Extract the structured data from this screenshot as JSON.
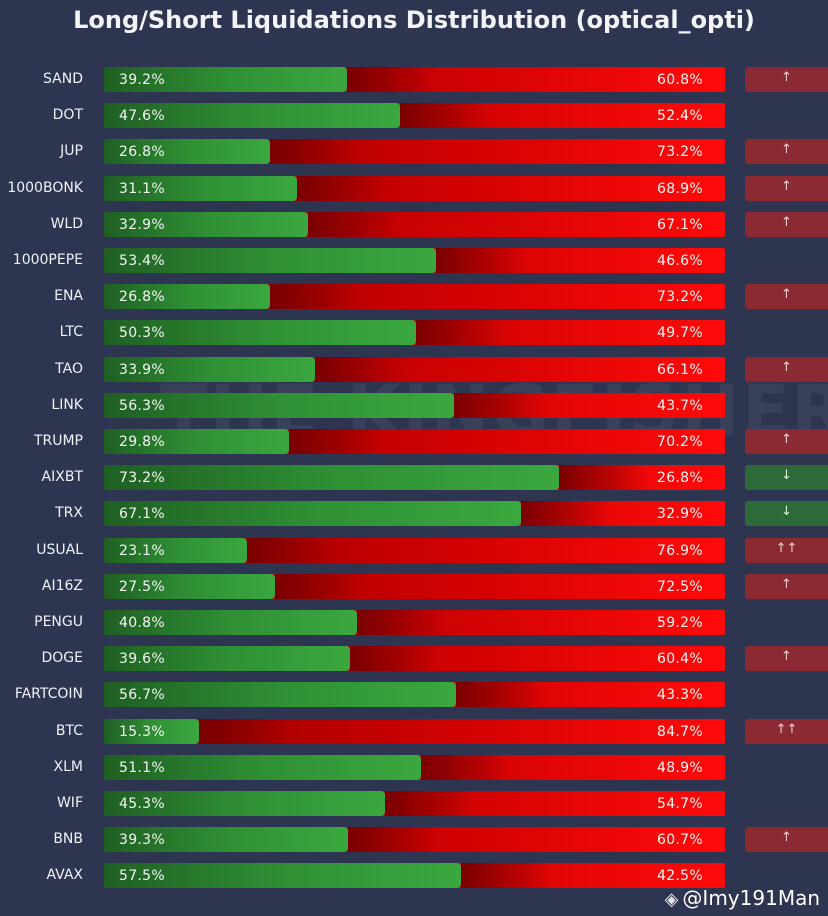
{
  "title": "Long/Short Liquidations Distribution (optical_opti)",
  "watermark": "THE KINGFISHER",
  "credit": "@Imy191Man",
  "colors": {
    "background": "#2d3550",
    "long": "#3aa83f",
    "short": "#ff0a0a",
    "signal_up": "#8c2a33",
    "signal_down": "#2d6a3a"
  },
  "chart_data": {
    "type": "bar",
    "orientation": "horizontal-stacked-percent",
    "categories": [
      "SAND",
      "DOT",
      "JUP",
      "1000BONK",
      "WLD",
      "1000PEPE",
      "ENA",
      "LTC",
      "TAO",
      "LINK",
      "TRUMP",
      "AIXBT",
      "TRX",
      "USUAL",
      "AI16Z",
      "PENGU",
      "DOGE",
      "FARTCOIN",
      "BTC",
      "XLM",
      "WIF",
      "BNB",
      "AVAX"
    ],
    "series": [
      {
        "values": [
          39.2,
          47.6,
          26.8,
          31.1,
          32.9,
          53.4,
          26.8,
          50.3,
          33.9,
          56.3,
          29.8,
          73.2,
          67.1,
          23.1,
          27.5,
          40.8,
          39.6,
          56.7,
          15.3,
          51.1,
          45.3,
          39.3,
          57.5
        ]
      },
      {
        "values": [
          60.8,
          52.4,
          73.2,
          68.9,
          67.1,
          46.6,
          73.2,
          49.7,
          66.1,
          43.7,
          70.2,
          26.8,
          32.9,
          76.9,
          72.5,
          59.2,
          60.4,
          43.3,
          84.7,
          48.9,
          54.7,
          60.7,
          42.5
        ]
      }
    ],
    "long_labels": [
      "39.2%",
      "47.6%",
      "26.8%",
      "31.1%",
      "32.9%",
      "53.4%",
      "26.8%",
      "50.3%",
      "33.9%",
      "56.3%",
      "29.8%",
      "73.2%",
      "67.1%",
      "23.1%",
      "27.5%",
      "40.8%",
      "39.6%",
      "56.7%",
      "15.3%",
      "51.1%",
      "45.3%",
      "39.3%",
      "57.5%"
    ],
    "short_labels": [
      "60.8%",
      "52.4%",
      "73.2%",
      "68.9%",
      "67.1%",
      "46.6%",
      "73.2%",
      "49.7%",
      "66.1%",
      "43.7%",
      "70.2%",
      "26.8%",
      "32.9%",
      "76.9%",
      "72.5%",
      "59.2%",
      "60.4%",
      "43.3%",
      "84.7%",
      "48.9%",
      "54.7%",
      "60.7%",
      "42.5%"
    ],
    "signals": [
      "↑",
      "",
      "↑",
      "↑",
      "↑",
      "",
      "↑",
      "",
      "↑",
      "",
      "↑",
      "↓",
      "↓",
      "↑↑",
      "↑",
      "",
      "↑",
      "",
      "↑↑",
      "",
      "",
      "↑",
      ""
    ],
    "xlim": [
      0,
      100
    ]
  }
}
